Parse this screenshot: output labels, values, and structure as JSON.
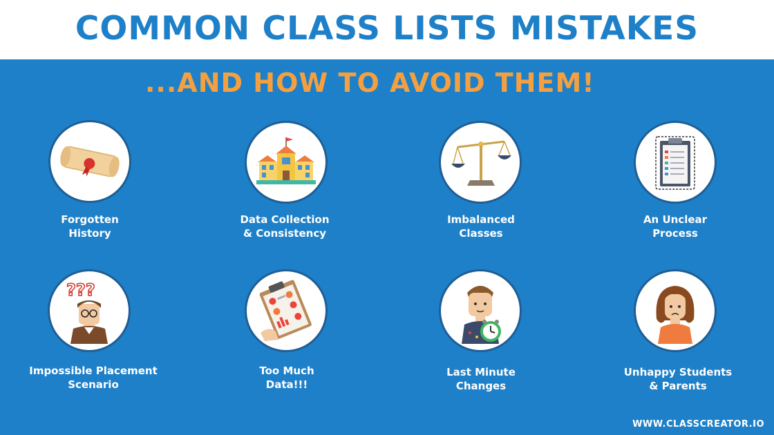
{
  "header": {
    "title": "COMMON CLASS LISTS MISTAKES",
    "subtitle": "...AND HOW TO AVOID THEM!"
  },
  "items": [
    {
      "label": "Forgotten\nHistory",
      "icon": "scroll-icon"
    },
    {
      "label": "Data Collection\n& Consistency",
      "icon": "school-icon"
    },
    {
      "label": "Imbalanced\nClasses",
      "icon": "scale-icon"
    },
    {
      "label": "An Unclear\nProcess",
      "icon": "clipboard-icon"
    },
    {
      "label": "Impossible Placement\nScenario",
      "icon": "confused-person-icon"
    },
    {
      "label": "Too Much\nData!!!",
      "icon": "data-clipboard-icon"
    },
    {
      "label": "Last Minute\nChanges",
      "icon": "student-clock-icon"
    },
    {
      "label": "Unhappy Students\n& Parents",
      "icon": "sad-girl-icon"
    }
  ],
  "footer": {
    "url": "WWW.CLASSCREATOR.IO"
  },
  "colors": {
    "background": "#1e80c8",
    "title": "#1e80c8",
    "subtitle": "#f5a040",
    "circle_ring": "#1f5e95"
  }
}
